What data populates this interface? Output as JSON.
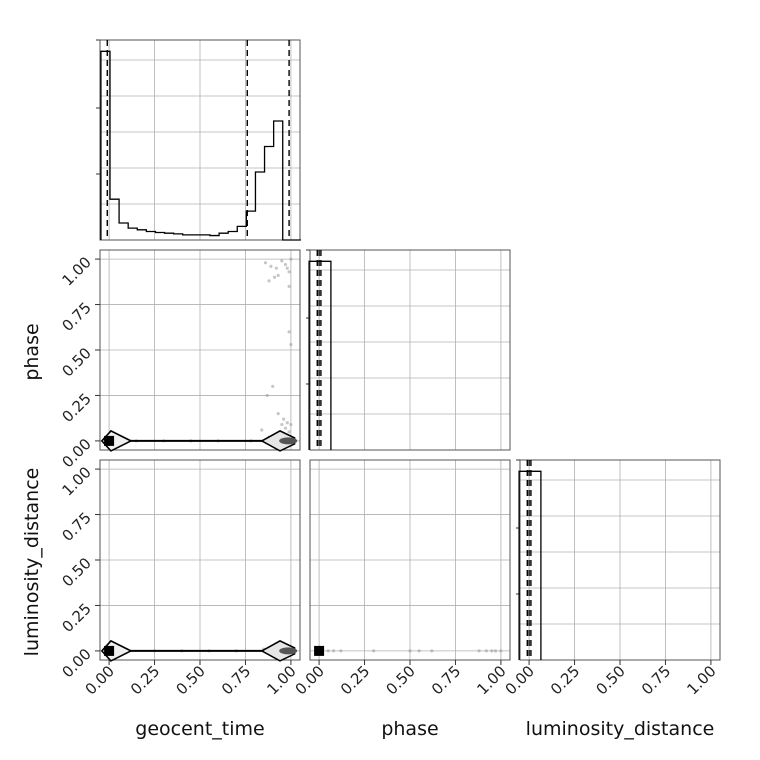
{
  "chart_data": {
    "type": "corner",
    "parameters": [
      "geocent_time",
      "phase",
      "luminosity_distance"
    ],
    "tick_labels": [
      "0.00",
      "0.25",
      "0.50",
      "0.75",
      "1.00"
    ],
    "range": [
      -0.05,
      1.05
    ],
    "grid": true,
    "histograms": {
      "geocent_time": {
        "bin_edges": [
          -0.045,
          0.005,
          0.055,
          0.105,
          0.155,
          0.205,
          0.255,
          0.305,
          0.355,
          0.405,
          0.455,
          0.505,
          0.555,
          0.605,
          0.655,
          0.705,
          0.755,
          0.805,
          0.855,
          0.905,
          0.955,
          1.005,
          1.055
        ],
        "counts": [
          55.5,
          12.0,
          5.0,
          3.5,
          3.0,
          2.5,
          2.2,
          2.0,
          1.8,
          1.5,
          1.5,
          1.5,
          1.3,
          2.0,
          2.5,
          4.0,
          8.5,
          20.0,
          27.5,
          35.0,
          0,
          0
        ],
        "quantile_lines": [
          -0.01,
          0.76,
          0.99
        ]
      },
      "phase": {
        "bin_edges": [
          -0.055,
          0.005,
          0.065
        ],
        "counts": [
          1.0,
          1.0
        ],
        "quantile_lines": [
          -0.01,
          0.0,
          0.01
        ]
      },
      "luminosity_distance": {
        "bin_edges": [
          -0.055,
          0.005,
          0.065
        ],
        "counts": [
          1.0,
          1.0
        ],
        "quantile_lines": [
          -0.01,
          0.0,
          0.01
        ]
      }
    },
    "scatter": {
      "phase_vs_geocent_time": {
        "points": [
          [
            0.86,
            0.98
          ],
          [
            0.89,
            0.96
          ],
          [
            0.92,
            0.95
          ],
          [
            0.95,
            0.99
          ],
          [
            0.97,
            0.97
          ],
          [
            1.0,
            1.0
          ],
          [
            0.88,
            0.88
          ],
          [
            0.91,
            0.9
          ],
          [
            0.93,
            0.91
          ],
          [
            0.98,
            0.95
          ],
          [
            0.99,
            0.93
          ],
          [
            0.99,
            0.85
          ],
          [
            0.9,
            0.3
          ],
          [
            0.93,
            0.15
          ],
          [
            0.96,
            0.12
          ],
          [
            0.98,
            0.1
          ],
          [
            1.0,
            0.09
          ],
          [
            0.87,
            0.25
          ],
          [
            0.99,
            0.6
          ],
          [
            0.99,
            0.05
          ],
          [
            1.0,
            0.53
          ],
          [
            0.97,
            0.07
          ],
          [
            0.95,
            0.09
          ],
          [
            0.92,
            0.03
          ],
          [
            0.88,
            0.02
          ],
          [
            0.84,
            0.06
          ],
          [
            0.78,
            0.0
          ],
          [
            0.6,
            0.0
          ],
          [
            0.45,
            0.0
          ],
          [
            0.3,
            0.0
          ],
          [
            0.15,
            0.0
          ],
          [
            0.05,
            0.0
          ]
        ],
        "contour_band": [
          0.0,
          0.0
        ]
      },
      "luminosity_distance_vs_geocent_time": {
        "points": [
          [
            0.85,
            0.01
          ],
          [
            0.9,
            0.0
          ],
          [
            0.95,
            0.0
          ],
          [
            1.0,
            0.0
          ],
          [
            0.7,
            0.0
          ],
          [
            0.55,
            0.0
          ],
          [
            0.4,
            0.0
          ],
          [
            0.25,
            0.0
          ],
          [
            0.1,
            0.0
          ],
          [
            0.05,
            0.0
          ]
        ],
        "contour_band": [
          0.0,
          0.0
        ]
      },
      "luminosity_distance_vs_phase": {
        "points": [
          [
            0.05,
            0.0
          ],
          [
            0.08,
            0.0
          ],
          [
            0.12,
            0.0
          ],
          [
            0.3,
            0.0
          ],
          [
            0.5,
            0.0
          ],
          [
            0.55,
            0.0
          ],
          [
            0.62,
            0.0
          ],
          [
            0.88,
            0.0
          ],
          [
            0.92,
            0.0
          ],
          [
            0.95,
            0.0
          ],
          [
            0.97,
            0.0
          ],
          [
            1.0,
            0.0
          ]
        ],
        "dense_square": [
          0.0,
          0.0
        ]
      }
    }
  }
}
